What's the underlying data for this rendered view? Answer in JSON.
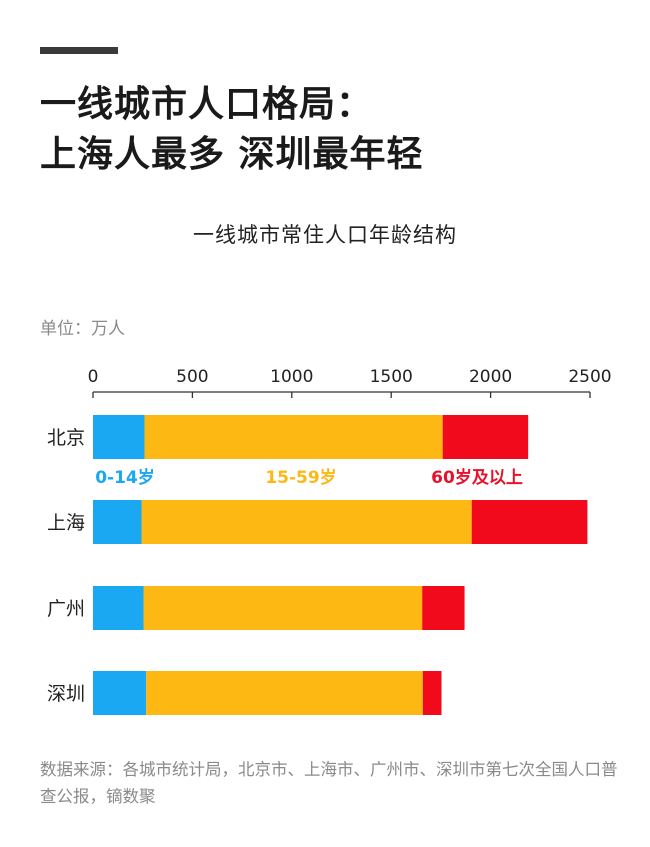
{
  "headline": {
    "line1": "一线城市人口格局：",
    "line2": "上海人最多  深圳最年轻"
  },
  "chart_title": "一线城市常住人口年龄结构",
  "unit_label": "单位：万人",
  "chart_data": {
    "type": "bar",
    "orientation": "horizontal",
    "stacked": true,
    "title": "一线城市常住人口年龄结构",
    "categories": [
      "北京",
      "上海",
      "广州",
      "深圳"
    ],
    "series": [
      {
        "name": "0-14岁",
        "color": "#1aa8f2",
        "values": [
          259,
          244,
          254,
          267
        ]
      },
      {
        "name": "15-59岁",
        "color": "#fdb814",
        "values": [
          1500,
          1661,
          1402,
          1392
        ]
      },
      {
        "name": "60岁及以上",
        "color": "#f00a1c",
        "values": [
          430,
          582,
          213,
          94
        ]
      }
    ],
    "xlim": [
      0,
      2500
    ],
    "xticks": [
      "0",
      "500",
      "1000",
      "1500",
      "2000",
      "2500"
    ],
    "grid": false,
    "legend_position": "inline-below-first-bar",
    "legend_label_colors": [
      "#1aa8f2",
      "#fdb814",
      "#e8102a"
    ]
  },
  "source_text": "数据来源：各城市统计局，北京市、上海市、广州市、深圳市第七次全国人口普查公报，镝数聚"
}
